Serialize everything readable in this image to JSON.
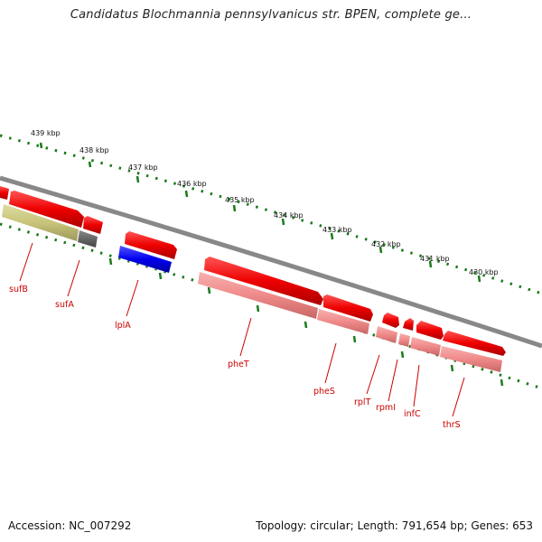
{
  "title": "Candidatus Blochmannia pennsylvanicus str. BPEN, complete ge...",
  "footer": {
    "accession": "Accession: NC_007292",
    "summary": "Topology: circular; Length: 791,654 bp; Genes: 653"
  },
  "colors": {
    "forward_gene": "#ee0000",
    "reverse_gene": "#f08a8a",
    "lipoate_gene": "#0000ee",
    "olive_gene": "#c8c47a",
    "grey_gene": "#666666",
    "backbone": "#888888",
    "ticks": "#1a7a1a",
    "label": "#cc0000"
  },
  "scale_labels": [
    {
      "text": "439 kbp"
    },
    {
      "text": "438 kbp"
    },
    {
      "text": "437 kbp"
    },
    {
      "text": "436 kbp"
    },
    {
      "text": "435 kbp"
    },
    {
      "text": "434 kbp"
    },
    {
      "text": "433 kbp"
    },
    {
      "text": "432 kbp"
    },
    {
      "text": "431 kbp"
    },
    {
      "text": "430 kbp"
    }
  ],
  "genes": [
    {
      "name": "sufB"
    },
    {
      "name": "sufA"
    },
    {
      "name": "lplA"
    },
    {
      "name": "pheT"
    },
    {
      "name": "pheS"
    },
    {
      "name": "rplT"
    },
    {
      "name": "rpmI"
    },
    {
      "name": "infC"
    },
    {
      "name": "thrS"
    }
  ]
}
